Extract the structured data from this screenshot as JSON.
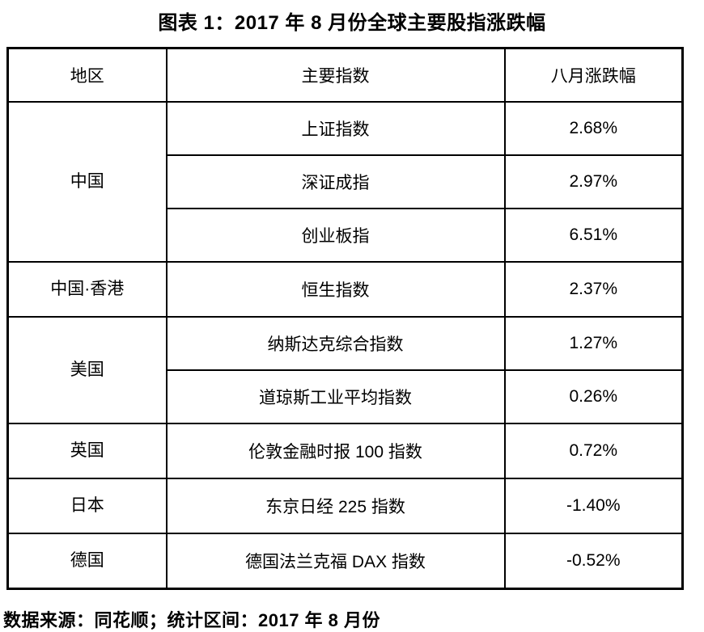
{
  "title": "图表 1：2017 年 8 月份全球主要股指涨跌幅",
  "table": {
    "headers": {
      "region": "地区",
      "index": "主要指数",
      "change": "八月涨跌幅"
    },
    "rows": [
      {
        "region": "中国",
        "index": "上证指数",
        "change": "2.68%"
      },
      {
        "index": "深证成指",
        "change": "2.97%"
      },
      {
        "index": "创业板指",
        "change": "6.51%"
      },
      {
        "region": "中国·香港",
        "index": "恒生指数",
        "change": "2.37%"
      },
      {
        "region": "美国",
        "index": "纳斯达克综合指数",
        "change": "1.27%"
      },
      {
        "index": "道琼斯工业平均指数",
        "change": "0.26%"
      },
      {
        "region": "英国",
        "index": "伦敦金融时报 100 指数",
        "change": "0.72%"
      },
      {
        "region": "日本",
        "index": "东京日经 225 指数",
        "change": "-1.40%"
      },
      {
        "region": "德国",
        "index": "德国法兰克福 DAX 指数",
        "change": "-0.52%"
      }
    ]
  },
  "footer": {
    "source_note": "数据来源：同花顺；统计区间：2017 年 8 月份"
  },
  "colors": {
    "text": "#000000",
    "border": "#000000",
    "background": "#ffffff"
  }
}
